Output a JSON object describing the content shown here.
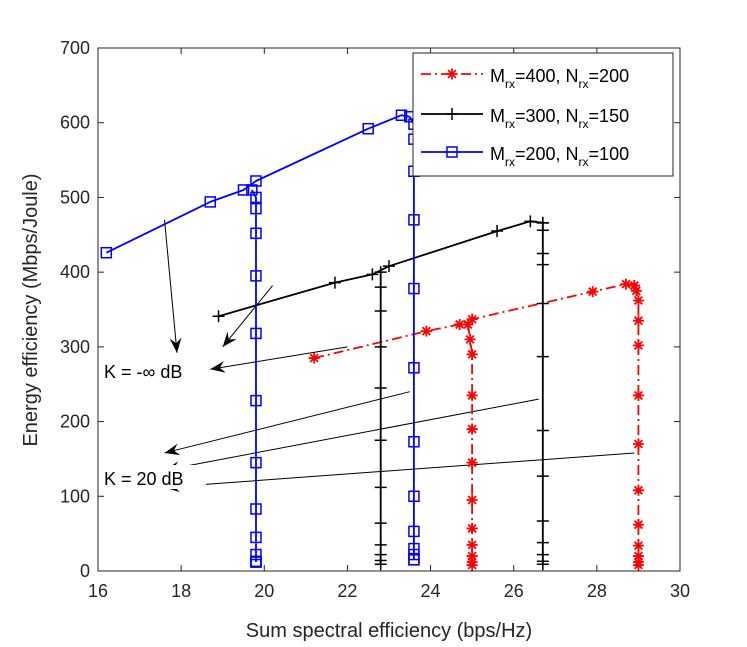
{
  "chart_data": {
    "type": "line",
    "xlabel": "Sum spectral efficiency (bps/Hz)",
    "ylabel": "Energy efficiency (Mbps/Joule)",
    "xlim": [
      16,
      30
    ],
    "ylim": [
      0,
      700
    ],
    "xticks": [
      16,
      18,
      20,
      22,
      24,
      26,
      28,
      30
    ],
    "yticks": [
      0,
      100,
      200,
      300,
      400,
      500,
      600,
      700
    ],
    "legend_position": "top-right",
    "series": [
      {
        "name_main": "M",
        "name_sub1": "rx",
        "name_mid": "=400, N",
        "name_sub2": "rx",
        "name_end": "=200",
        "color": "#ff0000",
        "marker": "asterisk",
        "linestyle": "dash-dot",
        "segments": [
          {
            "x": [
              21.2,
              23.9,
              24.7,
              25.0,
              27.9,
              28.7,
              28.9
            ],
            "y": [
              285,
              321,
              330,
              337,
              374,
              384,
              382
            ]
          },
          {
            "x": [
              24.9,
              24.95,
              25.0,
              25.0,
              25.0,
              25.0,
              25.0,
              25.0,
              25.0,
              25.0,
              25.0,
              25.0
            ],
            "y": [
              330,
              310,
              290,
              235,
              190,
              145,
              95,
              57,
              35,
              20,
              12,
              8
            ]
          },
          {
            "x": [
              28.9,
              28.95,
              29.0,
              29.0,
              29.0,
              29.0,
              29.0,
              29.0,
              29.0,
              29.0,
              29.0,
              29.0,
              29.0
            ],
            "y": [
              382,
              375,
              362,
              335,
              302,
              235,
              170,
              108,
              62,
              34,
              20,
              12,
              8
            ]
          }
        ]
      },
      {
        "name_main": "M",
        "name_sub1": "rx",
        "name_mid": "=300, N",
        "name_sub2": "rx",
        "name_end": "=150",
        "color": "#000000",
        "marker": "plus",
        "linestyle": "solid",
        "segments": [
          {
            "x": [
              18.9,
              21.7,
              22.6,
              23.0,
              25.6,
              26.4,
              26.7
            ],
            "y": [
              341,
              386,
              397,
              408,
              455,
              468,
              466
            ]
          },
          {
            "x": [
              22.8,
              22.8,
              22.8,
              22.8,
              22.8,
              22.8,
              22.8,
              22.8,
              22.8,
              22.8,
              22.8,
              22.8
            ],
            "y": [
              400,
              380,
              348,
              300,
              245,
              175,
              112,
              64,
              35,
              22,
              14,
              9
            ]
          },
          {
            "x": [
              26.7,
              26.7,
              26.7,
              26.7,
              26.7,
              26.7,
              26.7,
              26.7,
              26.7,
              26.7,
              26.7,
              26.7,
              26.7
            ],
            "y": [
              466,
              456,
              425,
              410,
              358,
              287,
              188,
              127,
              67,
              38,
              22,
              13,
              9
            ]
          }
        ]
      },
      {
        "name_main": "M",
        "name_sub1": "rx",
        "name_mid": "=200, N",
        "name_sub2": "rx",
        "name_end": "=100",
        "color": "#0000ff",
        "marker": "square",
        "linestyle": "solid",
        "segments": [
          {
            "x": [
              16.2,
              18.7,
              19.5,
              19.8,
              22.5,
              23.3,
              23.5
            ],
            "y": [
              426,
              494,
              510,
              522,
              592,
              610,
              608
            ]
          },
          {
            "x": [
              19.7,
              19.8,
              19.8,
              19.8,
              19.8,
              19.8,
              19.8,
              19.8,
              19.8,
              19.8,
              19.8,
              19.8,
              19.8,
              19.8
            ],
            "y": [
              510,
              500,
              485,
              452,
              395,
              318,
              228,
              145,
              83,
              45,
              22,
              13,
              12,
              12
            ]
          },
          {
            "x": [
              23.5,
              23.6,
              23.6,
              23.6,
              23.6,
              23.6,
              23.6,
              23.6,
              23.6,
              23.6,
              23.6,
              23.6,
              23.6,
              23.6
            ],
            "y": [
              608,
              598,
              578,
              535,
              470,
              378,
              272,
              173,
              100,
              53,
              30,
              22,
              15,
              15
            ]
          }
        ]
      }
    ],
    "annotations": [
      {
        "label": "K = -∞ dB"
      },
      {
        "label": "K = 20 dB"
      }
    ]
  }
}
